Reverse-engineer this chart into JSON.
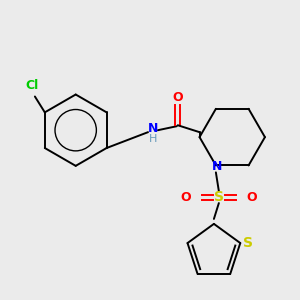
{
  "bg_color": "#ebebeb",
  "bond_color": "#000000",
  "colors": {
    "N": "#0000ff",
    "O": "#ff0000",
    "S_sulfonyl": "#cccc00",
    "S_thiophene": "#cccc00",
    "Cl": "#00cc00",
    "H": "#6699bb",
    "C": "#000000"
  },
  "figsize": [
    3.0,
    3.0
  ],
  "dpi": 100
}
